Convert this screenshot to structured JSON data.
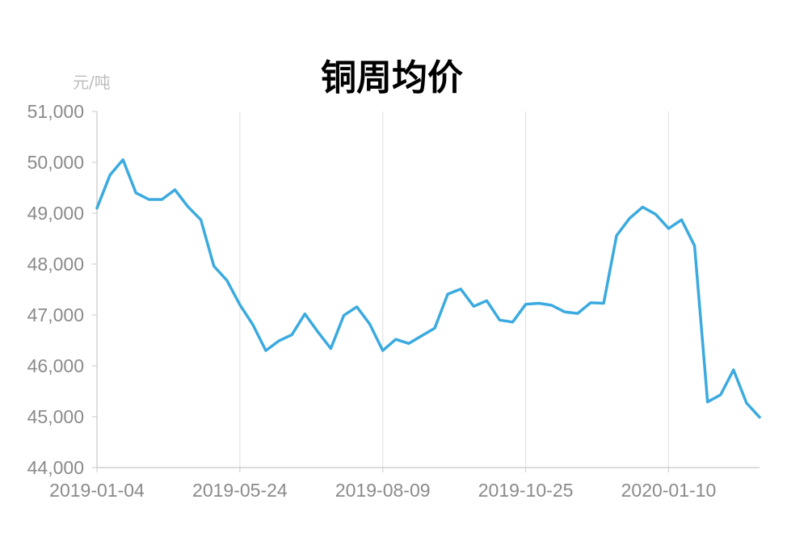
{
  "chart_data": {
    "type": "line",
    "title": "铜周均价",
    "ylabel": "元/吨",
    "xlabel": "",
    "ylim": [
      44000,
      51000
    ],
    "yticks": [
      "44,000",
      "45,000",
      "46,000",
      "47,000",
      "48,000",
      "49,000",
      "50,000",
      "51,000"
    ],
    "xticks": [
      "2019-01-04",
      "2019-05-24",
      "2019-08-09",
      "2019-10-25",
      "2020-01-10"
    ],
    "grid": "vertical",
    "legend": "none",
    "series": [
      {
        "color": "#3BAADF",
        "values": [
          49100,
          49750,
          50050,
          49400,
          49270,
          49270,
          49460,
          49130,
          48870,
          47960,
          47680,
          47200,
          46810,
          46300,
          46490,
          46610,
          47020,
          46670,
          46340,
          46990,
          47160,
          46820,
          46300,
          46520,
          46440,
          46590,
          46740,
          47410,
          47510,
          47170,
          47280,
          46900,
          46860,
          47210,
          47230,
          47190,
          47060,
          47030,
          47240,
          47230,
          48560,
          48900,
          49120,
          48980,
          48700,
          48870,
          48360,
          45290,
          45430,
          45920,
          45270,
          44990
        ]
      }
    ]
  }
}
